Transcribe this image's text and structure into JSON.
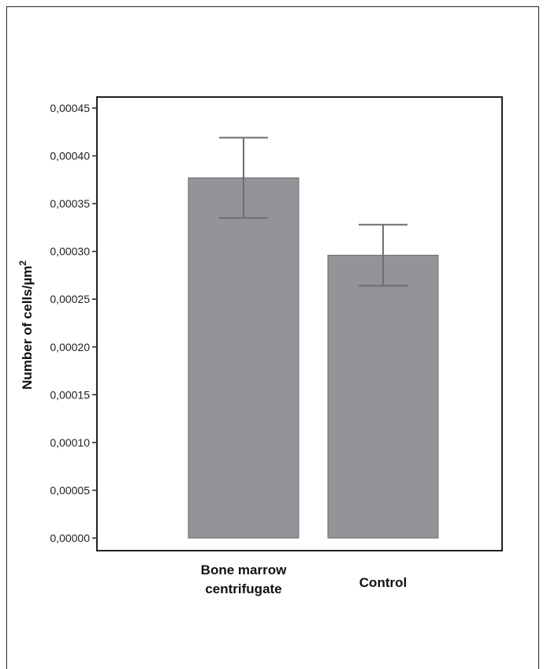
{
  "chart_data": {
    "type": "bar",
    "title": "",
    "xlabel": "",
    "ylabel": "Number of cells/µm",
    "ylabel_superscript": "2",
    "categories": [
      "Bone marrow centrifugate",
      "Control"
    ],
    "category_lines": [
      [
        "Bone marrow",
        "centrifugate"
      ],
      [
        "Control"
      ]
    ],
    "values": [
      0.000377,
      0.000296
    ],
    "errors": [
      4.2e-05,
      3.2e-05
    ],
    "ylim": [
      0,
      0.00045
    ],
    "yticks": [
      "0,00000",
      "0,00005",
      "0,00010",
      "0,00015",
      "0,00020",
      "0,00025",
      "0,00030",
      "0,00035",
      "0,00040",
      "0,00045"
    ],
    "grid": false,
    "legend": "none",
    "colors": {
      "bar": "#929497",
      "bar_edge": "#6d6e71",
      "error": "#6d6e71",
      "axis": "#222222"
    }
  }
}
